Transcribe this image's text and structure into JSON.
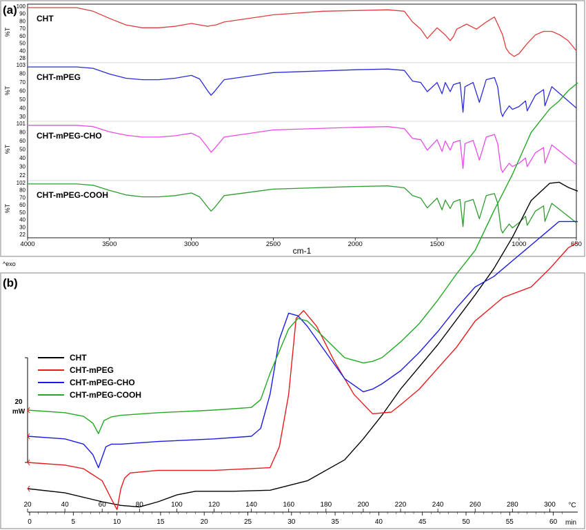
{
  "panel_a": {
    "tag": "(a)",
    "xlabel": "cm-1",
    "ylabel": "%T",
    "x_ticks": [
      4000,
      3500,
      3000,
      2500,
      2000,
      1500,
      1000,
      650
    ],
    "tracks": [
      {
        "label": "CHT",
        "y_ticks": [
          "100",
          "90",
          "80",
          "70",
          "60",
          "50",
          "40",
          "28"
        ]
      },
      {
        "label": "CHT-mPEG",
        "y_ticks": [
          "103",
          "80",
          "70",
          "60",
          "50",
          "40",
          "30"
        ]
      },
      {
        "label": "CHT-mPEG-CHO",
        "y_ticks": [
          "101",
          "80",
          "60",
          "50",
          "40",
          "30",
          "22"
        ]
      },
      {
        "label": "CHT-mPEG-COOH",
        "y_ticks": [
          "102",
          "80",
          "70",
          "60",
          "50",
          "40",
          "30",
          "22"
        ]
      }
    ]
  },
  "panel_b": {
    "tag": "(b)",
    "exo_label": "^exo",
    "scale_label_1": "20",
    "scale_label_2": "mW",
    "temp_unit": "°C",
    "time_unit": "min",
    "temp_ticks": [
      "20",
      "40",
      "60",
      "80",
      "100",
      "120",
      "140",
      "160",
      "180",
      "200",
      "220",
      "240",
      "260",
      "280",
      "300"
    ],
    "time_ticks": [
      "0",
      "5",
      "10",
      "15",
      "20",
      "25",
      "30",
      "35",
      "40",
      "45",
      "50",
      "55",
      "60"
    ],
    "legend": [
      {
        "label": "CHT",
        "color": "#000000"
      },
      {
        "label": "CHT-mPEG",
        "color": "#e8191b"
      },
      {
        "label": "CHT-mPEG-CHO",
        "color": "#1a1ae6"
      },
      {
        "label": "CHT-mPEG-COOH",
        "color": "#22a822"
      }
    ]
  },
  "chart_data": [
    {
      "type": "line",
      "panel": "(a)",
      "xlabel": "cm-1",
      "ylabel": "%T",
      "xlim": [
        4000,
        650
      ],
      "series": [
        {
          "name": "CHT",
          "color": "#e03c3c",
          "ylim": [
            28,
            100
          ],
          "x": [
            4000,
            3700,
            3600,
            3500,
            3400,
            3300,
            3200,
            3100,
            3000,
            2950,
            2900,
            2880,
            2850,
            2800,
            2500,
            2200,
            2000,
            1800,
            1700,
            1650,
            1600,
            1560,
            1500,
            1450,
            1420,
            1400,
            1380,
            1320,
            1260,
            1200,
            1150,
            1100,
            1080,
            1060,
            1030,
            1000,
            950,
            900,
            850,
            800,
            750,
            700,
            650
          ],
          "y": [
            98,
            98,
            93,
            83,
            74,
            70,
            70,
            72,
            76,
            74,
            72,
            73,
            74,
            78,
            88,
            93,
            94,
            95,
            93,
            78,
            68,
            55,
            70,
            60,
            52,
            58,
            68,
            75,
            68,
            78,
            85,
            60,
            42,
            35,
            30,
            34,
            48,
            60,
            65,
            65,
            60,
            52,
            38
          ]
        },
        {
          "name": "CHT-mPEG",
          "color": "#2a2ad8",
          "ylim": [
            30,
            103
          ],
          "x": [
            4000,
            3700,
            3600,
            3500,
            3400,
            3300,
            3200,
            3100,
            3000,
            2950,
            2900,
            2880,
            2860,
            2800,
            2500,
            2000,
            1800,
            1700,
            1650,
            1600,
            1560,
            1500,
            1470,
            1450,
            1420,
            1400,
            1360,
            1342,
            1330,
            1280,
            1242,
            1200,
            1150,
            1130,
            1110,
            1100,
            1090,
            1060,
            1040,
            1000,
            960,
            950,
            900,
            850,
            842,
            800,
            750,
            700,
            650
          ],
          "y": [
            100,
            100,
            98,
            90,
            84,
            82,
            82,
            84,
            88,
            83,
            66,
            60,
            65,
            82,
            92,
            96,
            97,
            95,
            80,
            78,
            65,
            78,
            62,
            78,
            65,
            75,
            78,
            36,
            72,
            78,
            50,
            82,
            85,
            72,
            36,
            30,
            35,
            45,
            40,
            44,
            52,
            38,
            60,
            68,
            45,
            72,
            62,
            52,
            42
          ]
        },
        {
          "name": "CHT-mPEG-CHO",
          "color": "#e84ae8",
          "ylim": [
            22,
            101
          ],
          "x": [
            4000,
            3700,
            3600,
            3500,
            3400,
            3300,
            3200,
            3100,
            3000,
            2950,
            2900,
            2880,
            2860,
            2800,
            2500,
            2000,
            1800,
            1700,
            1650,
            1600,
            1560,
            1500,
            1470,
            1450,
            1420,
            1400,
            1360,
            1342,
            1330,
            1280,
            1242,
            1200,
            1150,
            1130,
            1110,
            1100,
            1090,
            1060,
            1040,
            1000,
            960,
            950,
            900,
            850,
            842,
            800,
            750,
            700,
            650
          ],
          "y": [
            98,
            98,
            96,
            88,
            83,
            80,
            80,
            82,
            86,
            80,
            64,
            57,
            62,
            80,
            91,
            95,
            96,
            93,
            78,
            76,
            60,
            76,
            58,
            74,
            60,
            72,
            75,
            32,
            70,
            75,
            45,
            80,
            84,
            70,
            32,
            26,
            30,
            40,
            35,
            40,
            48,
            35,
            56,
            64,
            40,
            68,
            58,
            48,
            38
          ]
        },
        {
          "name": "CHT-mPEG-COOH",
          "color": "#2e9a2e",
          "ylim": [
            22,
            102
          ],
          "x": [
            4000,
            3700,
            3600,
            3500,
            3400,
            3300,
            3200,
            3100,
            3000,
            2950,
            2900,
            2880,
            2860,
            2800,
            2500,
            2000,
            1800,
            1700,
            1650,
            1600,
            1560,
            1500,
            1470,
            1450,
            1420,
            1400,
            1360,
            1342,
            1330,
            1280,
            1242,
            1200,
            1150,
            1130,
            1110,
            1100,
            1090,
            1060,
            1040,
            1000,
            960,
            950,
            900,
            850,
            842,
            800,
            750,
            700,
            650
          ],
          "y": [
            100,
            100,
            98,
            90,
            83,
            80,
            80,
            82,
            86,
            80,
            64,
            58,
            63,
            82,
            92,
            96,
            97,
            94,
            82,
            78,
            63,
            78,
            60,
            75,
            62,
            72,
            76,
            34,
            72,
            76,
            46,
            82,
            85,
            70,
            30,
            24,
            28,
            38,
            32,
            40,
            50,
            36,
            58,
            66,
            42,
            70,
            60,
            50,
            40
          ]
        }
      ]
    },
    {
      "type": "line",
      "panel": "(b)",
      "xlabel": "°C",
      "xlim": [
        20,
        315
      ],
      "legend_position": "top-left",
      "series": [
        {
          "name": "CHT",
          "color": "#000000",
          "unit_offset_mW": 0,
          "x": [
            20,
            40,
            60,
            70,
            80,
            90,
            100,
            110,
            130,
            150,
            170,
            190,
            200,
            210,
            220,
            240,
            260,
            270,
            280,
            290,
            300,
            305,
            310,
            315
          ],
          "y": [
            0,
            -0.8,
            -2.5,
            -3.2,
            -3.5,
            -2.5,
            -1.2,
            -0.5,
            -0.5,
            -0.3,
            1.5,
            5.5,
            9.5,
            14,
            19,
            27.5,
            37,
            42,
            48,
            55,
            58.3,
            58.5,
            57.5,
            56.8
          ]
        },
        {
          "name": "CHT-mPEG",
          "color": "#e8191b",
          "unit_offset_mW": 5,
          "x": [
            20,
            40,
            50,
            60,
            65,
            68,
            70,
            72,
            75,
            90,
            120,
            150,
            155,
            160,
            164,
            168,
            175,
            185,
            195,
            205,
            215,
            220,
            230,
            240,
            250,
            260,
            275,
            290,
            300,
            310,
            315
          ],
          "y": [
            0,
            -0.5,
            -1.2,
            -3.5,
            -7,
            -9,
            -5,
            -3,
            -2,
            -1.5,
            -1.5,
            -1,
            3,
            13,
            27.5,
            29,
            26,
            19,
            13,
            9.3,
            9.6,
            11,
            14,
            18,
            22,
            27,
            31.5,
            33.5,
            37,
            41,
            42
          ]
        },
        {
          "name": "CHT-mPEG-CHO",
          "color": "#1a1ae6",
          "unit_offset_mW": 10,
          "x": [
            20,
            40,
            50,
            55,
            58,
            60,
            62,
            65,
            70,
            90,
            120,
            140,
            145,
            150,
            155,
            160,
            165,
            170,
            180,
            190,
            200,
            205,
            210,
            220,
            230,
            240,
            250,
            260,
            270,
            280,
            290,
            300,
            305,
            315
          ],
          "y": [
            0,
            -0.5,
            -1.5,
            -3.5,
            -6,
            -4,
            -2,
            -1.5,
            -1.5,
            -1,
            -0.5,
            0,
            1.5,
            8,
            18.5,
            23.5,
            23,
            21,
            16,
            11,
            8.5,
            9,
            10,
            12.5,
            16,
            20,
            24.5,
            28.5,
            30.5,
            33.5,
            36.5,
            39.5,
            41,
            41
          ]
        },
        {
          "name": "CHT-mPEG-COOH",
          "color": "#22a822",
          "unit_offset_mW": 15,
          "x": [
            20,
            40,
            50,
            55,
            58,
            61,
            65,
            70,
            90,
            120,
            140,
            145,
            150,
            160,
            165,
            170,
            180,
            190,
            200,
            205,
            210,
            220,
            230,
            240,
            250,
            260,
            270,
            280,
            290,
            300,
            305,
            310,
            315
          ],
          "y": [
            0,
            -0.5,
            -1.2,
            -2.5,
            -4.5,
            -2,
            -1.3,
            -1,
            -0.5,
            0,
            0.5,
            2,
            7,
            15.5,
            17.5,
            17,
            13.5,
            10,
            9,
            9.3,
            10,
            13,
            16.5,
            21,
            26,
            30.5,
            38,
            45,
            53,
            57.5,
            59,
            61,
            62.5
          ]
        }
      ]
    }
  ]
}
